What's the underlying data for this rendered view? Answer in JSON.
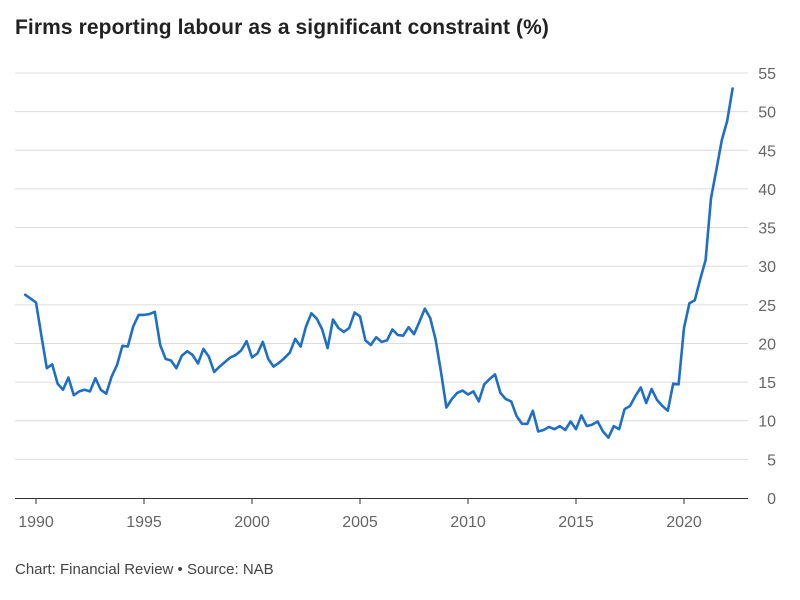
{
  "header": {
    "title": "Firms reporting labour as a significant constraint (%)"
  },
  "footer": {
    "credit": "Chart: Financial Review • Source: NAB"
  },
  "colors": {
    "line": "#1f6fc5",
    "grid": "#dcdcdc",
    "axis": "#333333",
    "tick_text": "#666666"
  },
  "chart_data": {
    "type": "line",
    "title": "Firms reporting labour as a significant constraint (%)",
    "xlabel": "",
    "ylabel": "",
    "xlim": [
      1989,
      2023
    ],
    "ylim": [
      0,
      55
    ],
    "x_ticks": [
      1990,
      1995,
      2000,
      2005,
      2010,
      2015,
      2020
    ],
    "y_ticks": [
      0,
      5,
      10,
      15,
      20,
      25,
      30,
      35,
      40,
      45,
      50,
      55
    ],
    "grid": "horizontal",
    "legend": "none",
    "series": [
      {
        "values": [
          [
            1989.5,
            26.3
          ],
          [
            1989.75,
            25.8
          ],
          [
            1990.0,
            25.3
          ],
          [
            1990.25,
            21.0
          ],
          [
            1990.5,
            16.8
          ],
          [
            1990.75,
            17.3
          ],
          [
            1991.0,
            14.8
          ],
          [
            1991.25,
            14.0
          ],
          [
            1991.5,
            15.6
          ],
          [
            1991.75,
            13.3
          ],
          [
            1992.0,
            13.8
          ],
          [
            1992.25,
            14.0
          ],
          [
            1992.5,
            13.8
          ],
          [
            1992.75,
            15.5
          ],
          [
            1993.0,
            14.0
          ],
          [
            1993.25,
            13.5
          ],
          [
            1993.5,
            15.7
          ],
          [
            1993.75,
            17.2
          ],
          [
            1994.0,
            19.7
          ],
          [
            1994.25,
            19.6
          ],
          [
            1994.5,
            22.2
          ],
          [
            1994.75,
            23.7
          ],
          [
            1995.0,
            23.7
          ],
          [
            1995.25,
            23.8
          ],
          [
            1995.5,
            24.1
          ],
          [
            1995.75,
            19.8
          ],
          [
            1996.0,
            18.0
          ],
          [
            1996.25,
            17.8
          ],
          [
            1996.5,
            16.8
          ],
          [
            1996.75,
            18.4
          ],
          [
            1997.0,
            19.0
          ],
          [
            1997.25,
            18.5
          ],
          [
            1997.5,
            17.4
          ],
          [
            1997.75,
            19.3
          ],
          [
            1998.0,
            18.3
          ],
          [
            1998.25,
            16.3
          ],
          [
            1998.5,
            17.0
          ],
          [
            1998.75,
            17.6
          ],
          [
            1999.0,
            18.2
          ],
          [
            1999.25,
            18.5
          ],
          [
            1999.5,
            19.1
          ],
          [
            1999.75,
            20.3
          ],
          [
            2000.0,
            18.2
          ],
          [
            2000.25,
            18.7
          ],
          [
            2000.5,
            20.2
          ],
          [
            2000.75,
            18.0
          ],
          [
            2001.0,
            17.0
          ],
          [
            2001.25,
            17.5
          ],
          [
            2001.5,
            18.1
          ],
          [
            2001.75,
            18.8
          ],
          [
            2002.0,
            20.6
          ],
          [
            2002.25,
            19.6
          ],
          [
            2002.5,
            22.2
          ],
          [
            2002.75,
            23.9
          ],
          [
            2003.0,
            23.2
          ],
          [
            2003.25,
            21.8
          ],
          [
            2003.5,
            19.4
          ],
          [
            2003.75,
            23.1
          ],
          [
            2004.0,
            22.0
          ],
          [
            2004.25,
            21.5
          ],
          [
            2004.5,
            22.0
          ],
          [
            2004.75,
            24.0
          ],
          [
            2005.0,
            23.5
          ],
          [
            2005.25,
            20.4
          ],
          [
            2005.5,
            19.8
          ],
          [
            2005.75,
            20.8
          ],
          [
            2006.0,
            20.2
          ],
          [
            2006.25,
            20.4
          ],
          [
            2006.5,
            21.8
          ],
          [
            2006.75,
            21.1
          ],
          [
            2007.0,
            21.0
          ],
          [
            2007.25,
            22.1
          ],
          [
            2007.5,
            21.2
          ],
          [
            2007.75,
            22.8
          ],
          [
            2008.0,
            24.5
          ],
          [
            2008.25,
            23.3
          ],
          [
            2008.5,
            20.5
          ],
          [
            2008.75,
            16.3
          ],
          [
            2009.0,
            11.7
          ],
          [
            2009.25,
            12.8
          ],
          [
            2009.5,
            13.6
          ],
          [
            2009.75,
            13.9
          ],
          [
            2010.0,
            13.4
          ],
          [
            2010.25,
            13.8
          ],
          [
            2010.5,
            12.5
          ],
          [
            2010.75,
            14.7
          ],
          [
            2011.0,
            15.4
          ],
          [
            2011.25,
            16.0
          ],
          [
            2011.5,
            13.6
          ],
          [
            2011.75,
            12.8
          ],
          [
            2012.0,
            12.5
          ],
          [
            2012.25,
            10.6
          ],
          [
            2012.5,
            9.6
          ],
          [
            2012.75,
            9.6
          ],
          [
            2013.0,
            11.3
          ],
          [
            2013.25,
            8.6
          ],
          [
            2013.5,
            8.8
          ],
          [
            2013.75,
            9.2
          ],
          [
            2014.0,
            8.9
          ],
          [
            2014.25,
            9.3
          ],
          [
            2014.5,
            8.8
          ],
          [
            2014.75,
            9.9
          ],
          [
            2015.0,
            8.9
          ],
          [
            2015.25,
            10.7
          ],
          [
            2015.5,
            9.3
          ],
          [
            2015.75,
            9.5
          ],
          [
            2016.0,
            9.9
          ],
          [
            2016.25,
            8.6
          ],
          [
            2016.5,
            7.8
          ],
          [
            2016.75,
            9.3
          ],
          [
            2017.0,
            8.9
          ],
          [
            2017.25,
            11.5
          ],
          [
            2017.5,
            11.9
          ],
          [
            2017.75,
            13.2
          ],
          [
            2018.0,
            14.3
          ],
          [
            2018.25,
            12.3
          ],
          [
            2018.5,
            14.1
          ],
          [
            2018.75,
            12.7
          ],
          [
            2019.0,
            11.9
          ],
          [
            2019.25,
            11.3
          ],
          [
            2019.5,
            14.8
          ],
          [
            2019.75,
            14.7
          ],
          [
            2020.0,
            22.0
          ],
          [
            2020.25,
            25.2
          ],
          [
            2020.5,
            25.6
          ],
          [
            2020.75,
            28.3
          ],
          [
            2021.0,
            30.8
          ],
          [
            2021.25,
            38.8
          ],
          [
            2021.5,
            42.5
          ],
          [
            2021.75,
            46.3
          ],
          [
            2022.0,
            48.8
          ],
          [
            2022.25,
            53.0
          ]
        ]
      }
    ]
  }
}
